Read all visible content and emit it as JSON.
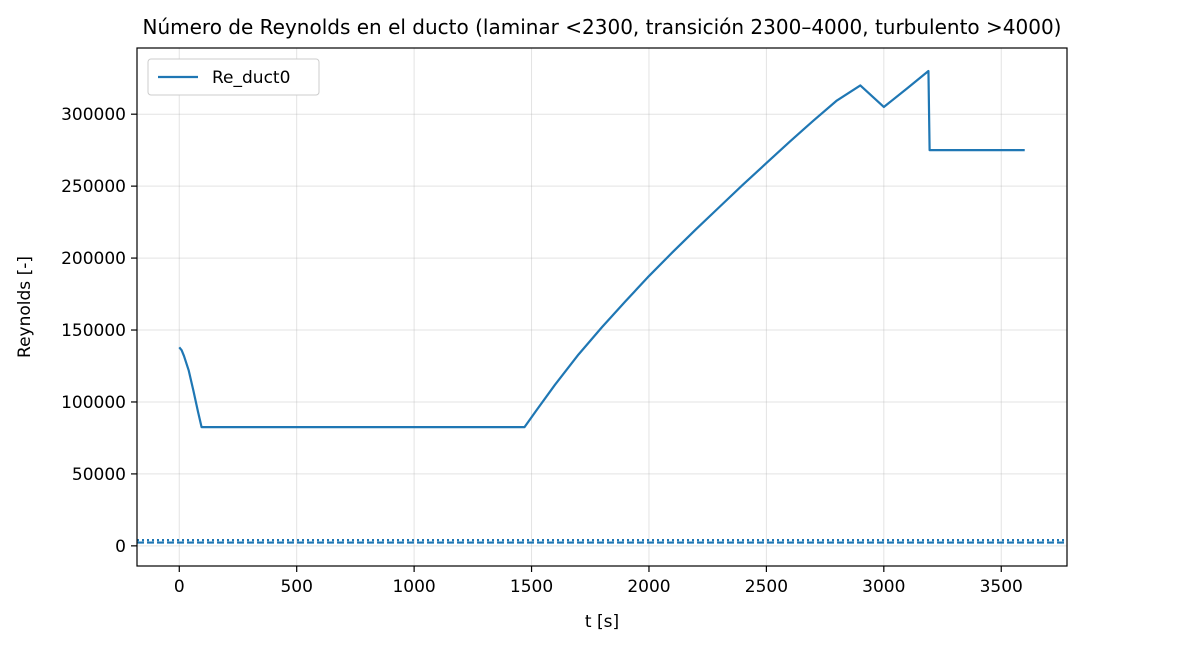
{
  "chart_data": {
    "type": "line",
    "title": "Número de Reynolds en el ducto (laminar <2300, transición 2300–4000, turbulento >4000)",
    "xlabel": "t [s]",
    "ylabel": "Reynolds [-]",
    "xlim": [
      -180,
      3780
    ],
    "ylim": [
      -14000,
      346000
    ],
    "xticks": [
      0,
      500,
      1000,
      1500,
      2000,
      2500,
      3000,
      3500
    ],
    "yticks": [
      0,
      50000,
      100000,
      150000,
      200000,
      250000,
      300000
    ],
    "xtick_labels": [
      "0",
      "500",
      "1000",
      "1500",
      "2000",
      "2500",
      "3000",
      "3500"
    ],
    "ytick_labels": [
      "0",
      "50000",
      "100000",
      "150000",
      "200000",
      "250000",
      "300000"
    ],
    "grid": true,
    "legend": {
      "position": "top-left",
      "entries": [
        "Re_duct0"
      ]
    },
    "series": [
      {
        "name": "Re_duct0",
        "color": "#1f77b4",
        "style": "solid",
        "points": [
          [
            0,
            138000
          ],
          [
            10,
            136000
          ],
          [
            20,
            132000
          ],
          [
            40,
            122000
          ],
          [
            60,
            108000
          ],
          [
            80,
            93000
          ],
          [
            95,
            82500
          ],
          [
            200,
            82500
          ],
          [
            600,
            82500
          ],
          [
            1000,
            82500
          ],
          [
            1400,
            82500
          ],
          [
            1470,
            82500
          ],
          [
            1520,
            94000
          ],
          [
            1600,
            112000
          ],
          [
            1700,
            133000
          ],
          [
            1800,
            152000
          ],
          [
            1900,
            170000
          ],
          [
            2000,
            187500
          ],
          [
            2100,
            204000
          ],
          [
            2200,
            220000
          ],
          [
            2300,
            235500
          ],
          [
            2400,
            251000
          ],
          [
            2500,
            266000
          ],
          [
            2600,
            281000
          ],
          [
            2700,
            295500
          ],
          [
            2800,
            309500
          ],
          [
            2900,
            320000
          ],
          [
            3000,
            305000
          ],
          [
            3100,
            318000
          ],
          [
            3190,
            330000
          ],
          [
            3195,
            275000
          ],
          [
            3400,
            275000
          ],
          [
            3600,
            275000
          ]
        ]
      }
    ],
    "reference_lines": [
      {
        "y": 2300,
        "color": "#1f77b4",
        "style": "dashed"
      },
      {
        "y": 4000,
        "color": "#1f77b4",
        "style": "dotted"
      }
    ]
  }
}
